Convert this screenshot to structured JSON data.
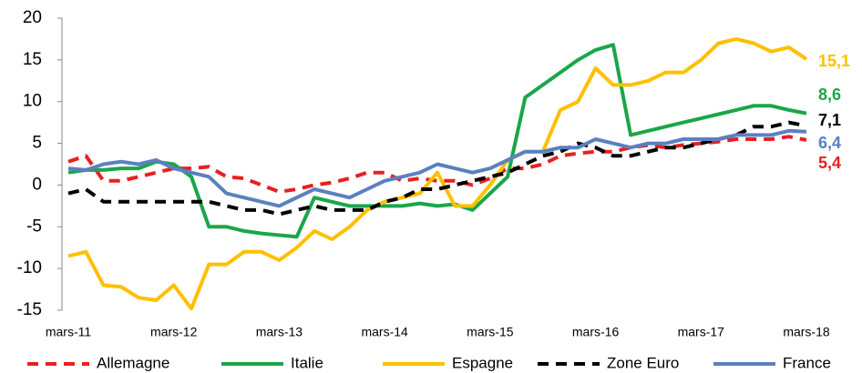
{
  "chart_data": {
    "type": "line",
    "categories": [
      "mars-11",
      null,
      null,
      null,
      null,
      null,
      "mars-12",
      null,
      null,
      null,
      null,
      null,
      "mars-13",
      null,
      null,
      null,
      null,
      null,
      "mars-14",
      null,
      null,
      null,
      null,
      null,
      "mars-15",
      null,
      null,
      null,
      null,
      null,
      "mars-16",
      null,
      null,
      null,
      null,
      null,
      "mars-17",
      null,
      null,
      null,
      null,
      null,
      "mars-18"
    ],
    "ylim": [
      -15,
      20
    ],
    "yticks": [
      -15,
      -10,
      -5,
      0,
      5,
      10,
      15,
      20
    ],
    "grid": false,
    "legend": "bottom",
    "series": [
      {
        "name": "Allemagne",
        "color": "#e82020",
        "dash": true,
        "end_label": "5,4",
        "values": [
          2.8,
          3.5,
          0.5,
          0.5,
          1.0,
          1.5,
          2.0,
          2.0,
          2.2,
          1.0,
          0.8,
          0.0,
          -0.8,
          -0.5,
          0.0,
          0.3,
          0.8,
          1.5,
          1.5,
          0.5,
          0.8,
          0.5,
          0.5,
          0.0,
          0.8,
          2.0,
          2.0,
          2.5,
          3.5,
          3.8,
          4.0,
          4.0,
          4.5,
          4.8,
          4.5,
          4.8,
          5.0,
          5.2,
          5.5,
          5.5,
          5.5,
          5.8,
          5.4
        ]
      },
      {
        "name": "Italie",
        "color": "#1aa64a",
        "dash": false,
        "end_label": "8,6",
        "values": [
          1.5,
          1.8,
          1.8,
          2.0,
          2.0,
          2.8,
          2.5,
          1.0,
          -5.0,
          -5.0,
          -5.5,
          -5.8,
          -6.0,
          -6.2,
          -1.5,
          -2.0,
          -2.5,
          -2.5,
          -2.5,
          -2.5,
          -2.2,
          -2.5,
          -2.3,
          -3.0,
          -1.0,
          1.0,
          10.5,
          12.0,
          13.5,
          15.0,
          16.2,
          16.8,
          6.0,
          6.5,
          7.0,
          7.5,
          8.0,
          8.5,
          9.0,
          9.5,
          9.5,
          9.0,
          8.6
        ]
      },
      {
        "name": "Espagne",
        "color": "#ffc000",
        "dash": false,
        "end_label": "15,1",
        "values": [
          -8.5,
          -8.0,
          -12.0,
          -12.2,
          -13.5,
          -13.8,
          -12.0,
          -14.8,
          -9.5,
          -9.5,
          -8.0,
          -8.0,
          -9.0,
          -7.5,
          -5.5,
          -6.5,
          -5.0,
          -3.0,
          -2.0,
          -1.5,
          -1.0,
          1.5,
          -2.5,
          -2.5,
          0.0,
          3.0,
          4.0,
          4.0,
          9.0,
          10.0,
          14.0,
          12.0,
          12.0,
          12.5,
          13.5,
          13.5,
          15.0,
          17.0,
          17.5,
          17.0,
          16.0,
          16.5,
          15.1
        ]
      },
      {
        "name": "Zone Euro",
        "color": "#000000",
        "dash": true,
        "end_label": "7,1",
        "values": [
          -1.0,
          -0.5,
          -2.0,
          -2.0,
          -2.0,
          -2.0,
          -2.0,
          -2.0,
          -2.0,
          -2.5,
          -3.0,
          -3.0,
          -3.5,
          -3.0,
          -2.5,
          -3.0,
          -3.0,
          -3.0,
          -2.0,
          -1.5,
          -0.5,
          -0.5,
          0.0,
          0.5,
          1.0,
          1.5,
          2.5,
          3.5,
          4.0,
          5.0,
          4.5,
          3.5,
          3.5,
          4.0,
          4.5,
          4.5,
          5.0,
          5.5,
          6.0,
          7.0,
          7.0,
          7.5,
          7.1
        ]
      },
      {
        "name": "France",
        "color": "#5b80c0",
        "dash": false,
        "end_label": "6,4",
        "values": [
          2.0,
          1.8,
          2.5,
          2.8,
          2.5,
          3.0,
          2.0,
          1.5,
          1.0,
          -1.0,
          -1.5,
          -2.0,
          -2.5,
          -1.5,
          -0.5,
          -1.0,
          -1.5,
          -0.5,
          0.5,
          1.0,
          1.5,
          2.5,
          2.0,
          1.5,
          2.0,
          3.0,
          4.0,
          4.0,
          4.5,
          4.5,
          5.5,
          5.0,
          4.5,
          5.0,
          5.0,
          5.5,
          5.5,
          5.5,
          6.0,
          6.0,
          6.0,
          6.5,
          6.4
        ]
      }
    ]
  }
}
